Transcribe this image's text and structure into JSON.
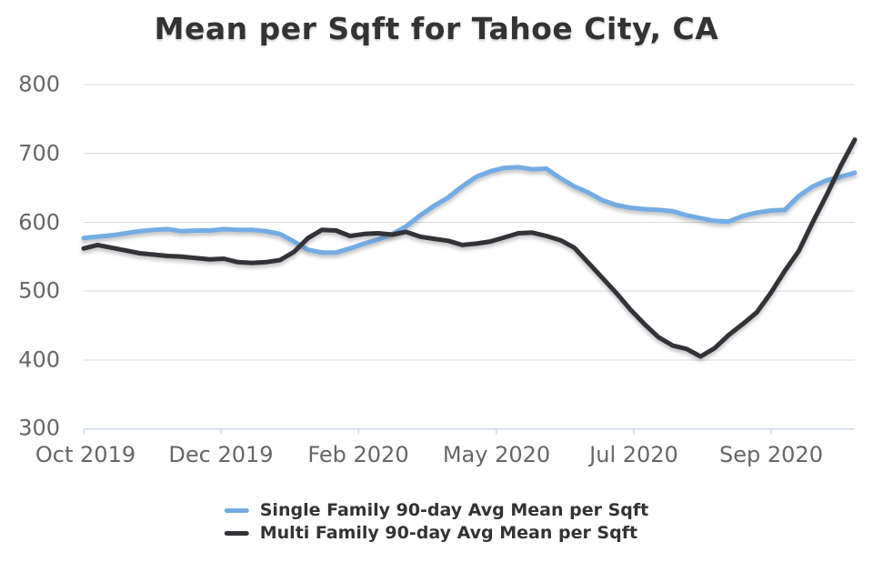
{
  "title": "Mean per Sqft for Tahoe City, CA",
  "colors": {
    "background": "#ffffff",
    "grid": "#d8d8d8",
    "axis": "#ccd6eb",
    "tick_label": "#666666",
    "title_text": "#333333",
    "legend_text": "#333333",
    "single_family": "#73ace4",
    "multi_family": "#333337"
  },
  "chart_data": {
    "type": "line",
    "title": "Mean per Sqft for Tahoe City, CA",
    "xlabel": "",
    "ylabel": "",
    "ylim": [
      300,
      800
    ],
    "grid": true,
    "legend_position": "bottom",
    "x_tick_labels": [
      "Oct 2019",
      "Dec 2019",
      "Feb 2020",
      "May 2020",
      "Jul 2020",
      "Sep 2020"
    ],
    "y_tick_labels": [
      "800",
      "700",
      "600",
      "500",
      "400",
      "300"
    ],
    "series": [
      {
        "name": "Single Family 90-day Avg Mean per Sqft",
        "color": "#73ace4",
        "values": [
          577,
          579,
          581,
          584,
          587,
          589,
          590,
          587,
          588,
          588,
          590,
          589,
          589,
          587,
          583,
          572,
          560,
          556,
          556,
          562,
          569,
          575,
          583,
          594,
          610,
          624,
          636,
          652,
          666,
          674,
          679,
          680,
          677,
          678,
          664,
          652,
          643,
          632,
          625,
          621,
          619,
          618,
          616,
          610,
          606,
          602,
          601,
          609,
          614,
          617,
          618,
          638,
          652,
          661,
          666,
          672
        ]
      },
      {
        "name": "Multi Family 90-day Avg Mean per Sqft",
        "color": "#333337",
        "values": [
          562,
          567,
          563,
          559,
          555,
          553,
          551,
          550,
          548,
          546,
          547,
          542,
          541,
          542,
          545,
          557,
          577,
          589,
          588,
          580,
          583,
          584,
          582,
          586,
          579,
          576,
          573,
          567,
          569,
          572,
          578,
          584,
          585,
          580,
          574,
          563,
          541,
          519,
          497,
          473,
          452,
          433,
          421,
          416,
          405,
          417,
          436,
          452,
          469,
          497,
          529,
          558,
          600,
          640,
          682,
          720
        ]
      }
    ]
  }
}
